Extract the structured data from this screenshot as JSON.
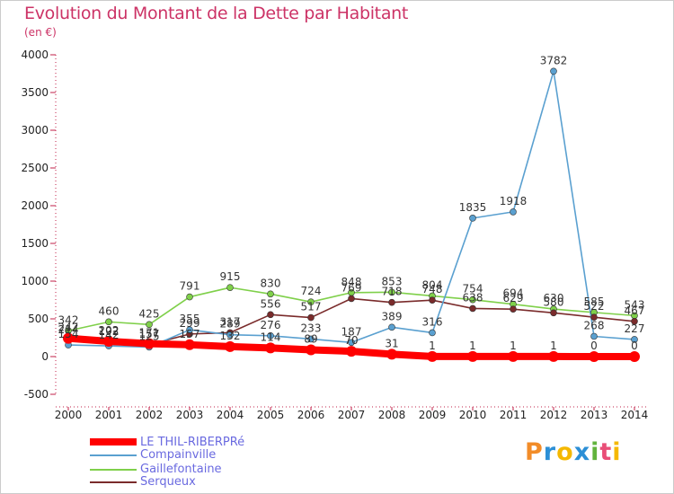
{
  "title": "Evolution du Montant de la Dette par Habitant",
  "unit": "(en €)",
  "logo": {
    "text": "Proxiti",
    "letters": [
      "P",
      "r",
      "o",
      "x",
      "i",
      "t",
      "i"
    ],
    "colors": [
      "#f28c28",
      "#2c8fd6",
      "#f5b800",
      "#2c8fd6",
      "#62b33d",
      "#e94e77",
      "#f5b800"
    ]
  },
  "chart_data": {
    "type": "line",
    "title": "Evolution du Montant de la Dette par Habitant",
    "ylabel": "(en €)",
    "x": [
      "2000",
      "2001",
      "2002",
      "2003",
      "2004",
      "2005",
      "2006",
      "2007",
      "2008",
      "2009",
      "2010",
      "2011",
      "2012",
      "2013",
      "2014"
    ],
    "ylim": [
      -500,
      4000
    ],
    "yticks": [
      "-500",
      "0",
      "500",
      "1000",
      "1500",
      "2000",
      "2500",
      "3000",
      "3500",
      "4000"
    ],
    "grid": false,
    "legend_position": "bottom-left",
    "series": [
      {
        "name": "LE THIL-RIBERPRé",
        "color": "#ff0000",
        "values": [
          242,
          202,
          171,
          157,
          132,
          114,
          89,
          70,
          31,
          1,
          1,
          1,
          1,
          0,
          0
        ],
        "labels": [
          "242",
          "202",
          "171",
          "157",
          "132",
          "114",
          "89",
          "70",
          "31",
          "1",
          "1",
          "1",
          "1",
          "0",
          "0"
        ]
      },
      {
        "name": "Compainville",
        "color": "#5aa0d0",
        "values": [
          154,
          142,
          125,
          355,
          289,
          276,
          233,
          187,
          389,
          316,
          1835,
          1918,
          3782,
          268,
          227
        ],
        "labels": [
          "154",
          "142",
          "125",
          "355",
          "289",
          "276",
          "233",
          "187",
          "389",
          "316",
          "1835",
          "1918",
          "3782",
          "268",
          "227"
        ]
      },
      {
        "name": "Gaillefontaine",
        "color": "#7fd04a",
        "values": [
          342,
          460,
          425,
          791,
          915,
          830,
          724,
          848,
          853,
          804,
          754,
          694,
          630,
          585,
          543
        ],
        "labels": [
          "342",
          "460",
          "425",
          "791",
          "915",
          "830",
          "724",
          "848",
          "853",
          "804",
          "754",
          "694",
          "630",
          "585",
          "543"
        ]
      },
      {
        "name": "Serqueux",
        "color": "#7a2b2b",
        "values": [
          214,
          192,
          157,
          299,
          317,
          556,
          517,
          769,
          718,
          748,
          638,
          629,
          580,
          522,
          467
        ],
        "labels": [
          "214",
          "192",
          "157",
          "299",
          "317",
          "556",
          "517",
          "769",
          "718",
          "748",
          "638",
          "629",
          "580",
          "522",
          "467"
        ]
      }
    ]
  }
}
